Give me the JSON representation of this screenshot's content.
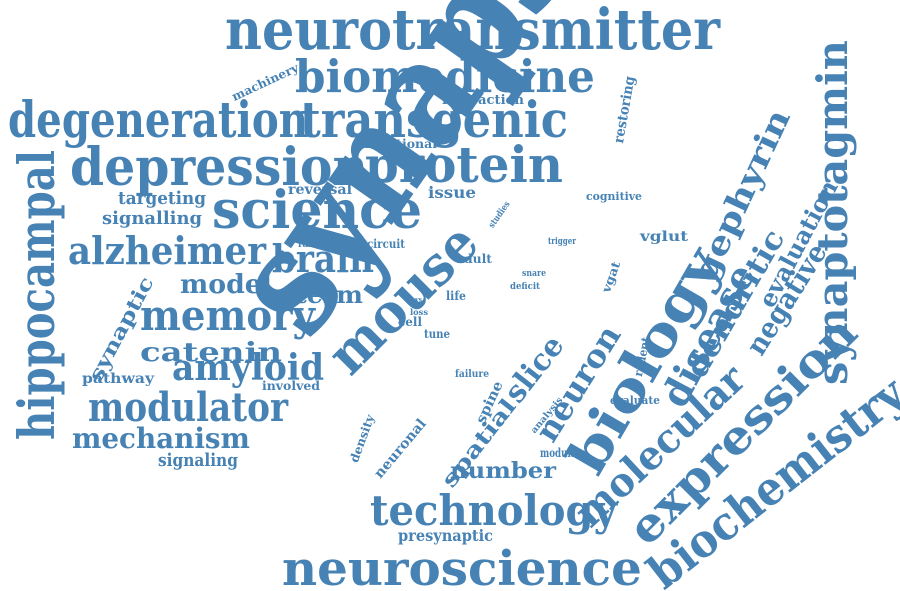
{
  "color": "#4682b4",
  "words": [
    {
      "text": "synapse"
    },
    {
      "text": "neurotransmitter"
    },
    {
      "text": "biomedicine"
    },
    {
      "text": "degeneration"
    },
    {
      "text": "transgenic"
    },
    {
      "text": "depression"
    },
    {
      "text": "protein"
    },
    {
      "text": "science"
    },
    {
      "text": "hippocampal"
    },
    {
      "text": "alzheimer"
    },
    {
      "text": "brain"
    },
    {
      "text": "memory"
    },
    {
      "text": "mouse"
    },
    {
      "text": "biology"
    },
    {
      "text": "neuroscience"
    },
    {
      "text": "technology"
    },
    {
      "text": "biochemistry"
    },
    {
      "text": "expression"
    },
    {
      "text": "synaptotagmin"
    },
    {
      "text": "molecular"
    },
    {
      "text": "modulator"
    },
    {
      "text": "amyloid"
    },
    {
      "text": "mechanism"
    },
    {
      "text": "catenin"
    },
    {
      "text": "model"
    },
    {
      "text": "term"
    },
    {
      "text": "disease"
    },
    {
      "text": "gephyrin"
    },
    {
      "text": "dendritic"
    },
    {
      "text": "negative"
    },
    {
      "text": "evaluation"
    },
    {
      "text": "neuron"
    },
    {
      "text": "slice"
    },
    {
      "text": "number"
    },
    {
      "text": "spatial"
    },
    {
      "text": "synaptic"
    },
    {
      "text": "signalling"
    },
    {
      "text": "targeting"
    },
    {
      "text": "signaling"
    },
    {
      "text": "pathway"
    },
    {
      "text": "involved"
    },
    {
      "text": "presynaptic"
    },
    {
      "text": "neuronal"
    },
    {
      "text": "density"
    },
    {
      "text": "spine"
    },
    {
      "text": "reversal"
    },
    {
      "text": "issue"
    },
    {
      "text": "functional"
    },
    {
      "text": "interaction"
    },
    {
      "text": "machinery"
    },
    {
      "text": "restoring"
    },
    {
      "text": "cognitive"
    },
    {
      "text": "vglut"
    },
    {
      "text": "vgat"
    },
    {
      "text": "function"
    },
    {
      "text": "circuit"
    },
    {
      "text": "adult"
    },
    {
      "text": "life"
    },
    {
      "text": "cell"
    },
    {
      "text": "tune"
    },
    {
      "text": "failure"
    },
    {
      "text": "studies"
    },
    {
      "text": "trigger"
    },
    {
      "text": "snare"
    },
    {
      "text": "deficit"
    },
    {
      "text": "ways"
    },
    {
      "text": "loss"
    },
    {
      "text": "rodent"
    },
    {
      "text": "evaluate"
    },
    {
      "text": "analysis"
    },
    {
      "text": "modulate"
    }
  ]
}
